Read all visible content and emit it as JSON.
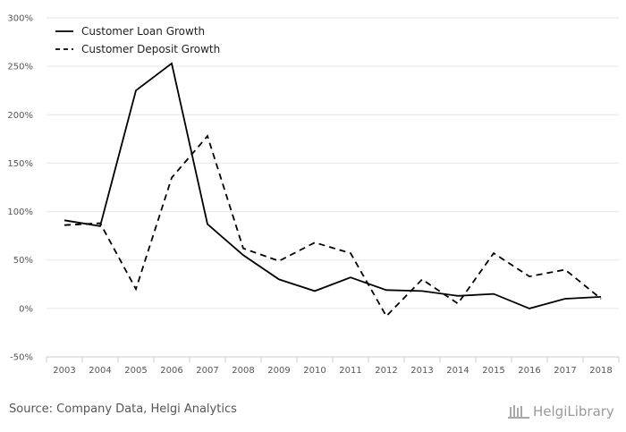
{
  "chart_data": {
    "type": "line",
    "title": "",
    "xlabel": "",
    "ylabel": "",
    "ylim": [
      -50,
      300
    ],
    "yticks": [
      -50,
      0,
      50,
      100,
      150,
      200,
      250,
      300
    ],
    "ytick_labels": [
      "-50%",
      "0%",
      "50%",
      "100%",
      "150%",
      "200%",
      "250%",
      "300%"
    ],
    "categories": [
      "2003",
      "2004",
      "2005",
      "2006",
      "2007",
      "2008",
      "2009",
      "2010",
      "2011",
      "2012",
      "2013",
      "2014",
      "2015",
      "2016",
      "2017",
      "2018"
    ],
    "legend_position": "top-left",
    "grid": true,
    "series": [
      {
        "name": "Customer Loan Growth",
        "style": "solid",
        "color": "#000000",
        "values": [
          91,
          85,
          225,
          253,
          87,
          55,
          30,
          18,
          32,
          19,
          18,
          13,
          15,
          0,
          10,
          12
        ]
      },
      {
        "name": "Customer Deposit Growth",
        "style": "dashed",
        "color": "#000000",
        "values": [
          86,
          88,
          20,
          135,
          178,
          62,
          49,
          68,
          57,
          -8,
          30,
          5,
          57,
          33,
          40,
          10
        ]
      }
    ]
  },
  "footer": {
    "source": "Source: Company Data, Helgi Analytics",
    "logo_text": "HelgiLibrary"
  }
}
